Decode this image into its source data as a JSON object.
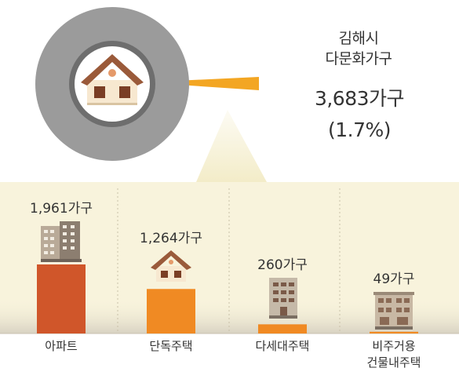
{
  "header": {
    "region": "김해시",
    "group": "다문화가구",
    "total": "3,683가구",
    "share": "(1.7%)"
  },
  "icons": [
    "house-icon",
    "apartment-building-icon",
    "villa-building-icon",
    "commercial-building-icon"
  ],
  "colors": {
    "bar_primary": "#d0562a",
    "bar_secondary": "#f08a23",
    "panel_bg": "#f8f3dc",
    "ring_outer": "#9b9b9b",
    "ring_inner": "#6e6e6e",
    "callout": "#f3a623",
    "house_roof": "#9a5a3a",
    "house_wall": "#f7e8d0"
  },
  "chart_data": {
    "type": "bar",
    "categories": [
      "아파트",
      "단독주택",
      "다세대주택",
      "비주거용 건물내주택"
    ],
    "values": [
      1961,
      1264,
      260,
      49
    ],
    "value_labels": [
      "1,961가구",
      "1,264가구",
      "260가구",
      "49가구"
    ],
    "category_lines": [
      [
        "아파트"
      ],
      [
        "단독주택"
      ],
      [
        "다세대주택"
      ],
      [
        "비주거용",
        "건물내주택"
      ]
    ],
    "ylim": [
      0,
      1961
    ]
  }
}
